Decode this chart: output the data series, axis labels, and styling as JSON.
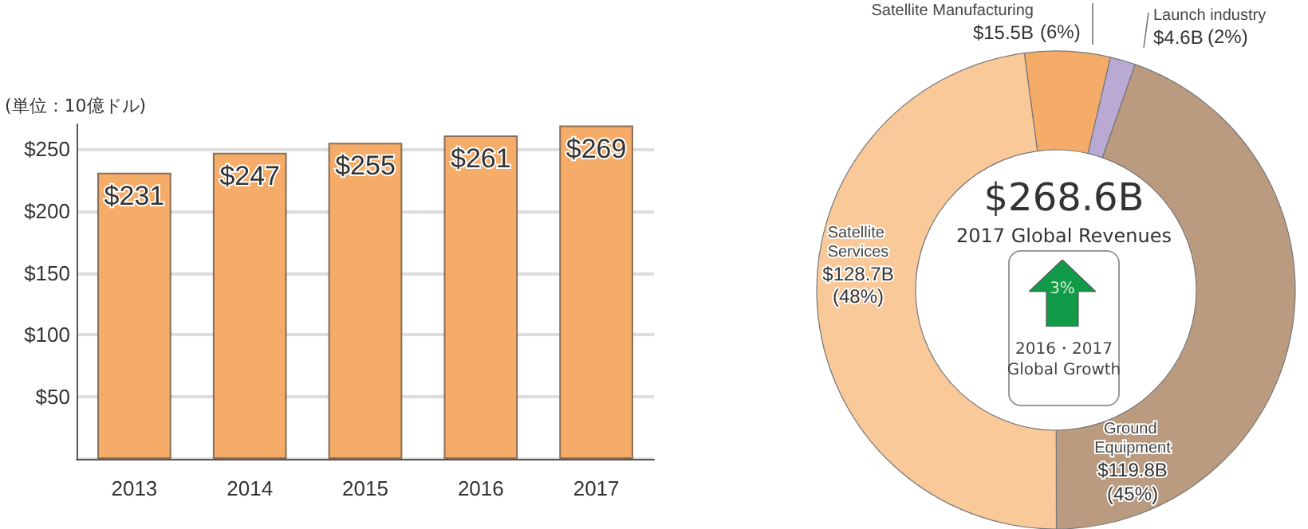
{
  "chart_data": [
    {
      "type": "bar",
      "ylabel": "(単位：10億ドル)",
      "categories": [
        "2013",
        "2014",
        "2015",
        "2016",
        "2017"
      ],
      "values": [
        231,
        247,
        255,
        261,
        269
      ],
      "value_labels": [
        "$231",
        "$247",
        "$255",
        "$261",
        "$269"
      ],
      "color": "#f5ac68",
      "ylim": [
        0,
        270
      ],
      "yticks": [
        {
          "value": 0,
          "label": null
        },
        {
          "value": 50,
          "label": "$50"
        },
        {
          "value": 100,
          "label": "$100"
        },
        {
          "value": 150,
          "label": "$150"
        },
        {
          "value": 200,
          "label": "$200"
        },
        {
          "value": 250,
          "label": "$250"
        }
      ],
      "grid": "y",
      "legend": false
    },
    {
      "type": "donut",
      "title": "$268.6B",
      "subtitle": "2017 Global Revenues",
      "categories": [
        "Satellite Manufacturing",
        "Launch industry",
        "Ground Equipment",
        "Satellite Services"
      ],
      "values": [
        15.5,
        4.6,
        119.8,
        128.7
      ],
      "value_labels": [
        "$15.5B",
        "$4.6B",
        "$119.8B",
        "$128.7B"
      ],
      "colors": [
        "#f5ac68",
        "#b9a9d3",
        "#bb9b80",
        "#f9c999"
      ],
      "annotations": [
        "3%",
        "2016・2017 Global Growth",
        "(6%)",
        "(2%)",
        "(45%)",
        "(48%)"
      ],
      "legend": false
    }
  ]
}
